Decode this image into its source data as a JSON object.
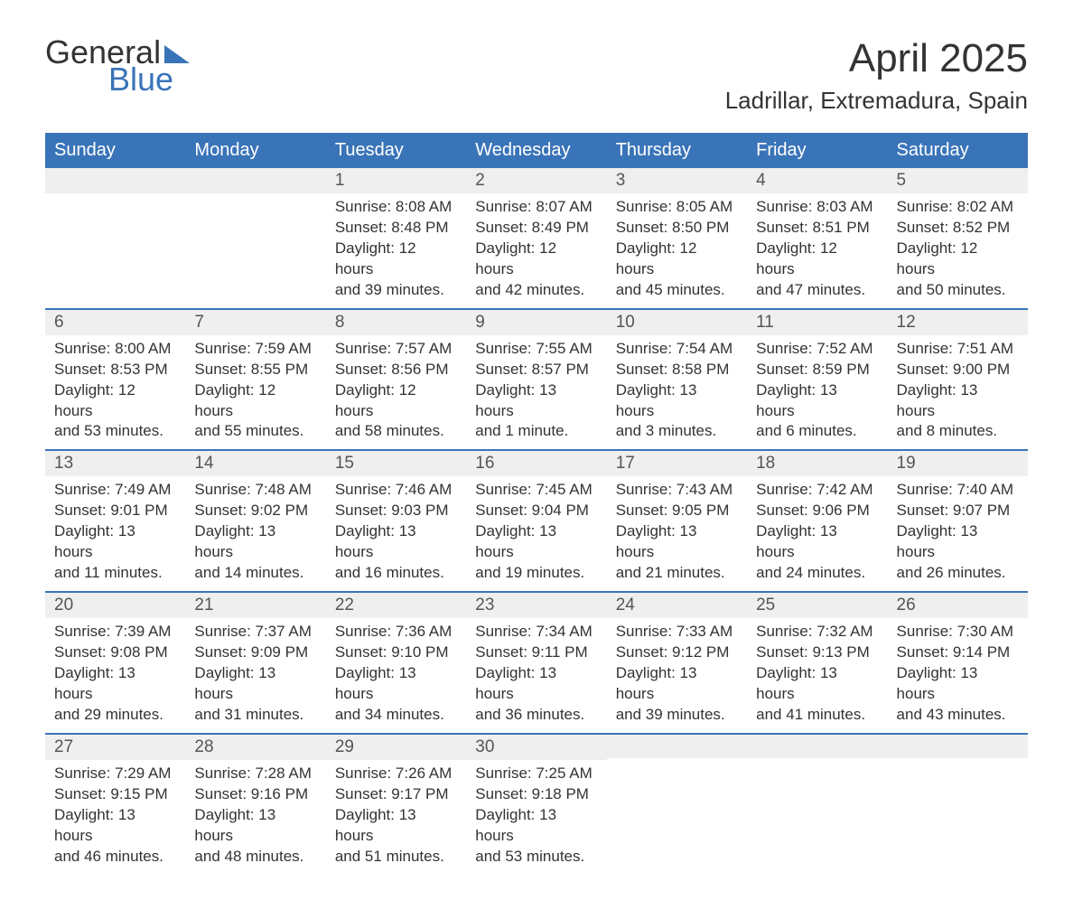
{
  "logo": {
    "general": "General",
    "blue": "Blue"
  },
  "header": {
    "month_title": "April 2025",
    "location": "Ladrillar, Extremadura, Spain"
  },
  "columns": [
    "Sunday",
    "Monday",
    "Tuesday",
    "Wednesday",
    "Thursday",
    "Friday",
    "Saturday"
  ],
  "colors": {
    "header_bg": "#3a74b8",
    "header_text": "#ffffff",
    "daynum_bg": "#efefef",
    "rule": "#3a74b8",
    "body_text": "#333333",
    "logo_blue": "#3a74b8"
  },
  "weeks": [
    [
      null,
      null,
      {
        "n": "1",
        "sunrise": "Sunrise: 8:08 AM",
        "sunset": "Sunset: 8:48 PM",
        "day1": "Daylight: 12 hours",
        "day2": "and 39 minutes."
      },
      {
        "n": "2",
        "sunrise": "Sunrise: 8:07 AM",
        "sunset": "Sunset: 8:49 PM",
        "day1": "Daylight: 12 hours",
        "day2": "and 42 minutes."
      },
      {
        "n": "3",
        "sunrise": "Sunrise: 8:05 AM",
        "sunset": "Sunset: 8:50 PM",
        "day1": "Daylight: 12 hours",
        "day2": "and 45 minutes."
      },
      {
        "n": "4",
        "sunrise": "Sunrise: 8:03 AM",
        "sunset": "Sunset: 8:51 PM",
        "day1": "Daylight: 12 hours",
        "day2": "and 47 minutes."
      },
      {
        "n": "5",
        "sunrise": "Sunrise: 8:02 AM",
        "sunset": "Sunset: 8:52 PM",
        "day1": "Daylight: 12 hours",
        "day2": "and 50 minutes."
      }
    ],
    [
      {
        "n": "6",
        "sunrise": "Sunrise: 8:00 AM",
        "sunset": "Sunset: 8:53 PM",
        "day1": "Daylight: 12 hours",
        "day2": "and 53 minutes."
      },
      {
        "n": "7",
        "sunrise": "Sunrise: 7:59 AM",
        "sunset": "Sunset: 8:55 PM",
        "day1": "Daylight: 12 hours",
        "day2": "and 55 minutes."
      },
      {
        "n": "8",
        "sunrise": "Sunrise: 7:57 AM",
        "sunset": "Sunset: 8:56 PM",
        "day1": "Daylight: 12 hours",
        "day2": "and 58 minutes."
      },
      {
        "n": "9",
        "sunrise": "Sunrise: 7:55 AM",
        "sunset": "Sunset: 8:57 PM",
        "day1": "Daylight: 13 hours",
        "day2": "and 1 minute."
      },
      {
        "n": "10",
        "sunrise": "Sunrise: 7:54 AM",
        "sunset": "Sunset: 8:58 PM",
        "day1": "Daylight: 13 hours",
        "day2": "and 3 minutes."
      },
      {
        "n": "11",
        "sunrise": "Sunrise: 7:52 AM",
        "sunset": "Sunset: 8:59 PM",
        "day1": "Daylight: 13 hours",
        "day2": "and 6 minutes."
      },
      {
        "n": "12",
        "sunrise": "Sunrise: 7:51 AM",
        "sunset": "Sunset: 9:00 PM",
        "day1": "Daylight: 13 hours",
        "day2": "and 8 minutes."
      }
    ],
    [
      {
        "n": "13",
        "sunrise": "Sunrise: 7:49 AM",
        "sunset": "Sunset: 9:01 PM",
        "day1": "Daylight: 13 hours",
        "day2": "and 11 minutes."
      },
      {
        "n": "14",
        "sunrise": "Sunrise: 7:48 AM",
        "sunset": "Sunset: 9:02 PM",
        "day1": "Daylight: 13 hours",
        "day2": "and 14 minutes."
      },
      {
        "n": "15",
        "sunrise": "Sunrise: 7:46 AM",
        "sunset": "Sunset: 9:03 PM",
        "day1": "Daylight: 13 hours",
        "day2": "and 16 minutes."
      },
      {
        "n": "16",
        "sunrise": "Sunrise: 7:45 AM",
        "sunset": "Sunset: 9:04 PM",
        "day1": "Daylight: 13 hours",
        "day2": "and 19 minutes."
      },
      {
        "n": "17",
        "sunrise": "Sunrise: 7:43 AM",
        "sunset": "Sunset: 9:05 PM",
        "day1": "Daylight: 13 hours",
        "day2": "and 21 minutes."
      },
      {
        "n": "18",
        "sunrise": "Sunrise: 7:42 AM",
        "sunset": "Sunset: 9:06 PM",
        "day1": "Daylight: 13 hours",
        "day2": "and 24 minutes."
      },
      {
        "n": "19",
        "sunrise": "Sunrise: 7:40 AM",
        "sunset": "Sunset: 9:07 PM",
        "day1": "Daylight: 13 hours",
        "day2": "and 26 minutes."
      }
    ],
    [
      {
        "n": "20",
        "sunrise": "Sunrise: 7:39 AM",
        "sunset": "Sunset: 9:08 PM",
        "day1": "Daylight: 13 hours",
        "day2": "and 29 minutes."
      },
      {
        "n": "21",
        "sunrise": "Sunrise: 7:37 AM",
        "sunset": "Sunset: 9:09 PM",
        "day1": "Daylight: 13 hours",
        "day2": "and 31 minutes."
      },
      {
        "n": "22",
        "sunrise": "Sunrise: 7:36 AM",
        "sunset": "Sunset: 9:10 PM",
        "day1": "Daylight: 13 hours",
        "day2": "and 34 minutes."
      },
      {
        "n": "23",
        "sunrise": "Sunrise: 7:34 AM",
        "sunset": "Sunset: 9:11 PM",
        "day1": "Daylight: 13 hours",
        "day2": "and 36 minutes."
      },
      {
        "n": "24",
        "sunrise": "Sunrise: 7:33 AM",
        "sunset": "Sunset: 9:12 PM",
        "day1": "Daylight: 13 hours",
        "day2": "and 39 minutes."
      },
      {
        "n": "25",
        "sunrise": "Sunrise: 7:32 AM",
        "sunset": "Sunset: 9:13 PM",
        "day1": "Daylight: 13 hours",
        "day2": "and 41 minutes."
      },
      {
        "n": "26",
        "sunrise": "Sunrise: 7:30 AM",
        "sunset": "Sunset: 9:14 PM",
        "day1": "Daylight: 13 hours",
        "day2": "and 43 minutes."
      }
    ],
    [
      {
        "n": "27",
        "sunrise": "Sunrise: 7:29 AM",
        "sunset": "Sunset: 9:15 PM",
        "day1": "Daylight: 13 hours",
        "day2": "and 46 minutes."
      },
      {
        "n": "28",
        "sunrise": "Sunrise: 7:28 AM",
        "sunset": "Sunset: 9:16 PM",
        "day1": "Daylight: 13 hours",
        "day2": "and 48 minutes."
      },
      {
        "n": "29",
        "sunrise": "Sunrise: 7:26 AM",
        "sunset": "Sunset: 9:17 PM",
        "day1": "Daylight: 13 hours",
        "day2": "and 51 minutes."
      },
      {
        "n": "30",
        "sunrise": "Sunrise: 7:25 AM",
        "sunset": "Sunset: 9:18 PM",
        "day1": "Daylight: 13 hours",
        "day2": "and 53 minutes."
      },
      null,
      null,
      null
    ]
  ]
}
